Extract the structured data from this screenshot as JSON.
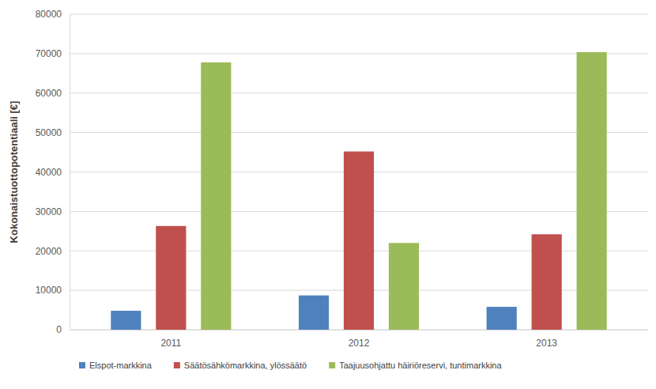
{
  "chart_data": {
    "type": "bar",
    "y_label": "Kokonaistuottopotentiaali [€]",
    "categories": [
      "2011",
      "2012",
      "2013"
    ],
    "series": [
      {
        "name": "Elspot-markkina",
        "color": "#4f81bd",
        "values": [
          4800,
          8700,
          5800
        ]
      },
      {
        "name": "Säätösähkömarkkina, ylössäätö",
        "color": "#c0504d",
        "values": [
          26300,
          45200,
          24200
        ]
      },
      {
        "name": "Taajuusohjattu häiriöreservi, tuntimarkkina",
        "color": "#9bbb59",
        "values": [
          67800,
          22000,
          70400
        ]
      }
    ],
    "ylim": [
      0,
      80000
    ],
    "yticks": [
      0,
      10000,
      20000,
      30000,
      40000,
      50000,
      60000,
      70000,
      80000
    ],
    "grid": true,
    "legend": "bottom"
  }
}
